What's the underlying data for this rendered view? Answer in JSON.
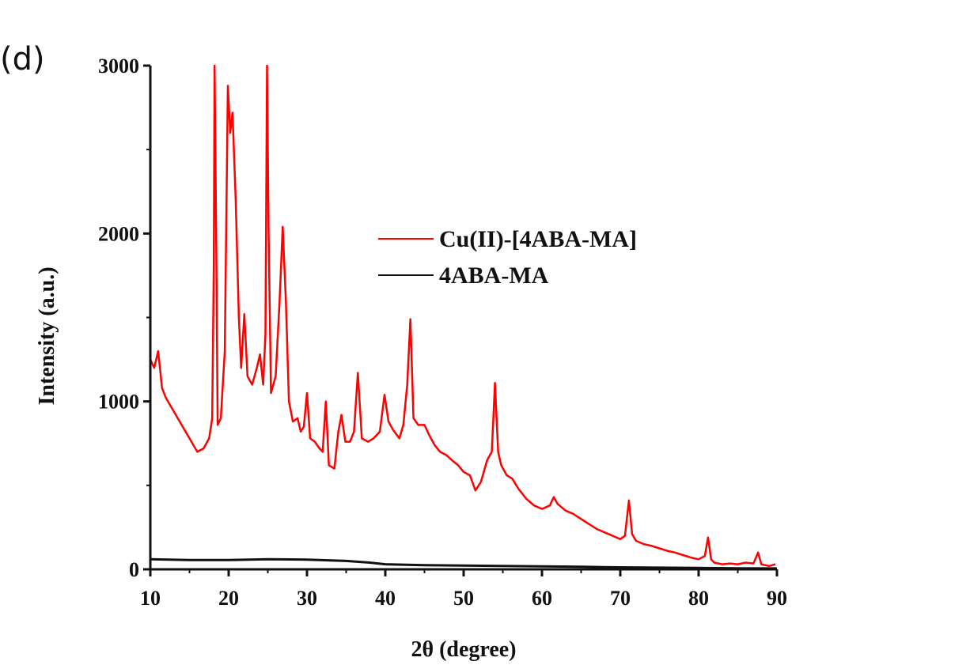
{
  "panel_label": "(d)",
  "chart_data": {
    "type": "line",
    "title": "",
    "xlabel": "2θ (degree)",
    "ylabel": "Intensity (a.u.)",
    "xlim": [
      10,
      90
    ],
    "ylim": [
      0,
      3000
    ],
    "x_ticks": [
      10,
      20,
      30,
      40,
      50,
      60,
      70,
      80,
      90
    ],
    "y_ticks": [
      0,
      1000,
      2000,
      3000
    ],
    "grid": false,
    "legend_position": "center-right",
    "series": [
      {
        "name": "Cu(II)-[4ABA-MA]",
        "color": "#ff0000",
        "points": [
          [
            10,
            1250
          ],
          [
            10.5,
            1200
          ],
          [
            11,
            1300
          ],
          [
            11.5,
            1080
          ],
          [
            12,
            1020
          ],
          [
            13,
            940
          ],
          [
            14,
            860
          ],
          [
            15,
            780
          ],
          [
            16,
            700
          ],
          [
            16.8,
            720
          ],
          [
            17.5,
            780
          ],
          [
            17.9,
            900
          ],
          [
            18.1,
            1800
          ],
          [
            18.2,
            3000
          ],
          [
            18.4,
            2000
          ],
          [
            18.6,
            860
          ],
          [
            19,
            900
          ],
          [
            19.5,
            1300
          ],
          [
            19.9,
            2880
          ],
          [
            20.2,
            2600
          ],
          [
            20.5,
            2720
          ],
          [
            20.9,
            2200
          ],
          [
            21.3,
            1500
          ],
          [
            21.6,
            1200
          ],
          [
            22,
            1520
          ],
          [
            22.4,
            1150
          ],
          [
            23,
            1100
          ],
          [
            23.6,
            1200
          ],
          [
            24,
            1280
          ],
          [
            24.4,
            1100
          ],
          [
            24.7,
            1400
          ],
          [
            24.9,
            3000
          ],
          [
            25.1,
            2000
          ],
          [
            25.4,
            1050
          ],
          [
            26,
            1150
          ],
          [
            26.5,
            1600
          ],
          [
            26.9,
            2040
          ],
          [
            27.3,
            1600
          ],
          [
            27.7,
            1000
          ],
          [
            28.2,
            880
          ],
          [
            28.8,
            900
          ],
          [
            29.2,
            820
          ],
          [
            29.6,
            850
          ],
          [
            30,
            1050
          ],
          [
            30.4,
            780
          ],
          [
            31,
            760
          ],
          [
            31.6,
            720
          ],
          [
            32,
            700
          ],
          [
            32.4,
            1000
          ],
          [
            32.8,
            620
          ],
          [
            33.5,
            600
          ],
          [
            34,
            820
          ],
          [
            34.4,
            920
          ],
          [
            34.9,
            760
          ],
          [
            35.5,
            760
          ],
          [
            36,
            820
          ],
          [
            36.5,
            1170
          ],
          [
            37,
            780
          ],
          [
            37.8,
            760
          ],
          [
            38.5,
            780
          ],
          [
            39.3,
            820
          ],
          [
            39.9,
            1040
          ],
          [
            40.4,
            880
          ],
          [
            41,
            830
          ],
          [
            41.8,
            780
          ],
          [
            42.3,
            860
          ],
          [
            42.8,
            1100
          ],
          [
            43.2,
            1490
          ],
          [
            43.6,
            900
          ],
          [
            44.2,
            860
          ],
          [
            45,
            860
          ],
          [
            45.6,
            800
          ],
          [
            46.3,
            740
          ],
          [
            47,
            700
          ],
          [
            47.8,
            680
          ],
          [
            48.5,
            650
          ],
          [
            49.3,
            620
          ],
          [
            50,
            580
          ],
          [
            50.8,
            560
          ],
          [
            51.5,
            470
          ],
          [
            52.2,
            520
          ],
          [
            53,
            650
          ],
          [
            53.6,
            700
          ],
          [
            54,
            1110
          ],
          [
            54.4,
            700
          ],
          [
            54.8,
            620
          ],
          [
            55.5,
            560
          ],
          [
            56.2,
            540
          ],
          [
            57,
            480
          ],
          [
            58,
            420
          ],
          [
            59,
            380
          ],
          [
            60,
            360
          ],
          [
            61,
            380
          ],
          [
            61.5,
            430
          ],
          [
            62,
            390
          ],
          [
            63,
            350
          ],
          [
            64,
            330
          ],
          [
            65,
            300
          ],
          [
            66,
            270
          ],
          [
            67,
            240
          ],
          [
            68,
            220
          ],
          [
            69,
            200
          ],
          [
            70,
            180
          ],
          [
            70.6,
            200
          ],
          [
            71.1,
            410
          ],
          [
            71.5,
            210
          ],
          [
            72,
            170
          ],
          [
            73,
            150
          ],
          [
            74,
            140
          ],
          [
            75,
            125
          ],
          [
            76,
            110
          ],
          [
            77,
            100
          ],
          [
            78,
            85
          ],
          [
            79,
            70
          ],
          [
            80,
            60
          ],
          [
            80.8,
            80
          ],
          [
            81.2,
            190
          ],
          [
            81.6,
            60
          ],
          [
            82,
            40
          ],
          [
            83,
            30
          ],
          [
            84,
            35
          ],
          [
            85,
            30
          ],
          [
            86,
            40
          ],
          [
            87,
            35
          ],
          [
            87.6,
            100
          ],
          [
            88,
            30
          ],
          [
            89,
            20
          ],
          [
            89.8,
            30
          ]
        ]
      },
      {
        "name": "4ABA-MA",
        "color": "#111111",
        "points": [
          [
            10,
            60
          ],
          [
            15,
            55
          ],
          [
            20,
            55
          ],
          [
            25,
            60
          ],
          [
            30,
            58
          ],
          [
            35,
            50
          ],
          [
            38,
            40
          ],
          [
            40,
            30
          ],
          [
            45,
            25
          ],
          [
            50,
            22
          ],
          [
            55,
            20
          ],
          [
            60,
            18
          ],
          [
            65,
            15
          ],
          [
            70,
            12
          ],
          [
            75,
            10
          ],
          [
            80,
            8
          ],
          [
            85,
            6
          ],
          [
            90,
            5
          ]
        ]
      }
    ]
  }
}
